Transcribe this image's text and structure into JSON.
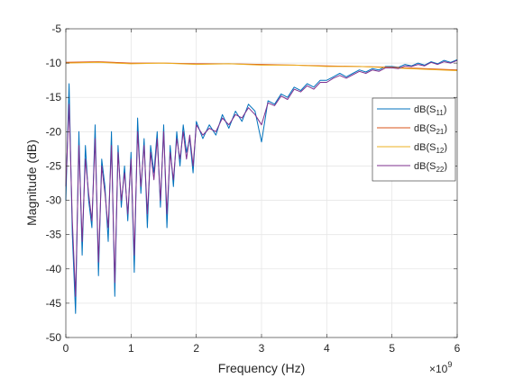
{
  "chart_data": {
    "type": "line",
    "xlabel": "Frequency (Hz)",
    "ylabel": "Magnitude (dB)",
    "x_exponent_base": "×10",
    "x_exponent_power": "9",
    "xlim": [
      0,
      6
    ],
    "ylim": [
      -50,
      -5
    ],
    "x_ticks": [
      "0",
      "1",
      "2",
      "3",
      "4",
      "5",
      "6"
    ],
    "y_ticks": [
      "-5",
      "-10",
      "-15",
      "-20",
      "-25",
      "-30",
      "-35",
      "-40",
      "-45",
      "-50"
    ],
    "grid": true,
    "legend_position": "right",
    "legend": [
      {
        "base": "dB(S",
        "sub": "11",
        "close": ")",
        "color": "#0072BD"
      },
      {
        "base": "dB(S",
        "sub": "21",
        "close": ")",
        "color": "#D95319"
      },
      {
        "base": "dB(S",
        "sub": "12",
        "close": ")",
        "color": "#EDB120"
      },
      {
        "base": "dB(S",
        "sub": "22",
        "close": ")",
        "color": "#7E2F8E"
      }
    ],
    "series": [
      {
        "name": "dB(S11)",
        "color": "#0072BD",
        "x": [
          0,
          0.05,
          0.1,
          0.15,
          0.2,
          0.25,
          0.3,
          0.35,
          0.4,
          0.45,
          0.5,
          0.55,
          0.6,
          0.65,
          0.7,
          0.75,
          0.8,
          0.85,
          0.9,
          0.95,
          1.0,
          1.05,
          1.1,
          1.15,
          1.2,
          1.25,
          1.3,
          1.35,
          1.4,
          1.45,
          1.5,
          1.55,
          1.6,
          1.65,
          1.7,
          1.75,
          1.8,
          1.85,
          1.9,
          1.95,
          2.0,
          2.1,
          2.2,
          2.3,
          2.4,
          2.5,
          2.6,
          2.7,
          2.8,
          2.9,
          3.0,
          3.1,
          3.2,
          3.3,
          3.4,
          3.5,
          3.6,
          3.7,
          3.8,
          3.9,
          4.0,
          4.1,
          4.2,
          4.3,
          4.4,
          4.5,
          4.6,
          4.7,
          4.8,
          4.9,
          5.0,
          5.1,
          5.2,
          5.3,
          5.4,
          5.5,
          5.6,
          5.7,
          5.8,
          5.9,
          6.0
        ],
        "values": [
          -30,
          -13,
          -35,
          -46.5,
          -20,
          -38,
          -22,
          -30,
          -34,
          -19,
          -41,
          -24,
          -28,
          -36,
          -20,
          -44,
          -22,
          -31,
          -25,
          -33,
          -23,
          -40.5,
          -18,
          -29,
          -21,
          -34,
          -22,
          -26,
          -20,
          -31,
          -19,
          -34,
          -22,
          -28,
          -20,
          -25,
          -19,
          -23,
          -21,
          -26,
          -18.5,
          -21,
          -19,
          -20.5,
          -17.5,
          -19.5,
          -17,
          -18.5,
          -16,
          -17,
          -21.5,
          -15.5,
          -16,
          -14.5,
          -15,
          -13.5,
          -14,
          -13,
          -13.5,
          -12.5,
          -12.5,
          -12,
          -11.5,
          -12,
          -11.5,
          -11,
          -11.3,
          -10.8,
          -11,
          -10.5,
          -10.5,
          -10.6,
          -10.2,
          -10.4,
          -10,
          -10.3,
          -9.8,
          -10.1,
          -9.6,
          -9.9,
          -9.5
        ]
      },
      {
        "name": "dB(S21)",
        "color": "#D95319",
        "x": [
          0,
          0.5,
          1,
          1.5,
          2,
          2.5,
          3,
          3.5,
          4,
          4.5,
          5,
          5.5,
          6
        ],
        "values": [
          -9.9,
          -9.8,
          -10.0,
          -10.0,
          -10.1,
          -10.1,
          -10.2,
          -10.3,
          -10.4,
          -10.5,
          -10.6,
          -10.8,
          -11.0
        ]
      },
      {
        "name": "dB(S12)",
        "color": "#EDB120",
        "x": [
          0,
          0.5,
          1,
          1.5,
          2,
          2.5,
          3,
          3.5,
          4,
          4.5,
          5,
          5.5,
          6
        ],
        "values": [
          -10.0,
          -9.9,
          -10.1,
          -10.0,
          -10.2,
          -10.1,
          -10.3,
          -10.3,
          -10.5,
          -10.5,
          -10.7,
          -10.9,
          -11.1
        ]
      },
      {
        "name": "dB(S22)",
        "color": "#7E2F8E",
        "x": [
          0,
          0.05,
          0.1,
          0.15,
          0.2,
          0.25,
          0.3,
          0.35,
          0.4,
          0.45,
          0.5,
          0.55,
          0.6,
          0.65,
          0.7,
          0.75,
          0.8,
          0.85,
          0.9,
          0.95,
          1.0,
          1.05,
          1.1,
          1.15,
          1.2,
          1.25,
          1.3,
          1.35,
          1.4,
          1.45,
          1.5,
          1.55,
          1.6,
          1.65,
          1.7,
          1.75,
          1.8,
          1.85,
          1.9,
          1.95,
          2.0,
          2.1,
          2.2,
          2.3,
          2.4,
          2.5,
          2.6,
          2.7,
          2.8,
          2.9,
          3.0,
          3.1,
          3.2,
          3.3,
          3.4,
          3.5,
          3.6,
          3.7,
          3.8,
          3.9,
          4.0,
          4.1,
          4.2,
          4.3,
          4.4,
          4.5,
          4.6,
          4.7,
          4.8,
          4.9,
          5.0,
          5.1,
          5.2,
          5.3,
          5.4,
          5.5,
          5.6,
          5.7,
          5.8,
          5.9,
          6.0
        ],
        "values": [
          -28,
          -16,
          -33,
          -44,
          -22,
          -36,
          -24,
          -29,
          -33,
          -21,
          -39,
          -25,
          -29,
          -34,
          -22,
          -42,
          -23,
          -30,
          -26,
          -32,
          -24,
          -38,
          -20,
          -28,
          -22,
          -32,
          -23,
          -27,
          -21,
          -30,
          -20,
          -32,
          -23,
          -27,
          -21,
          -24,
          -20,
          -24,
          -20.5,
          -25,
          -19,
          -20.5,
          -19.5,
          -20,
          -18,
          -19,
          -17.5,
          -18,
          -16.5,
          -17.5,
          -19,
          -15.8,
          -16.2,
          -14.8,
          -15.3,
          -13.8,
          -14.2,
          -13.3,
          -13.8,
          -12.8,
          -12.8,
          -12.2,
          -11.8,
          -12.2,
          -11.7,
          -11.2,
          -11.5,
          -11,
          -11.2,
          -10.7,
          -10.7,
          -10.8,
          -10.4,
          -10.5,
          -10.2,
          -10.4,
          -9.9,
          -10.2,
          -9.8,
          -10,
          -9.6
        ]
      }
    ]
  }
}
